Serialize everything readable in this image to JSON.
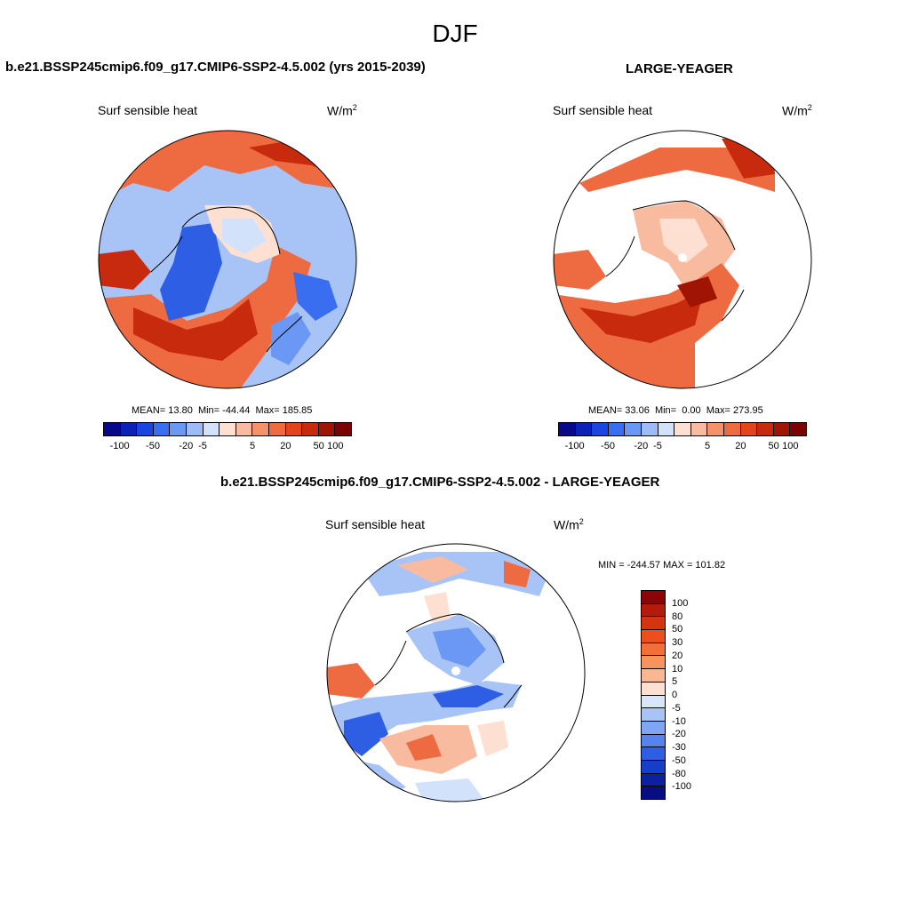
{
  "season": "DJF",
  "panels": {
    "test": {
      "title": "b.e21.BSSP245cmip6.f09_g17.CMIP6-SSP2-4.5.002 (yrs 2015-2039)",
      "variable": "Surf sensible heat",
      "units_base": "W/m",
      "units_exp": "2",
      "mean_label": "MEAN=",
      "mean": "13.80",
      "min_label": "Min=",
      "min": "-44.44",
      "max_label": "Max=",
      "max": "185.85"
    },
    "obs": {
      "title": "LARGE-YEAGER",
      "variable": "Surf sensible heat",
      "units_base": "W/m",
      "units_exp": "2",
      "mean_label": "MEAN=",
      "mean": "33.06",
      "min_label": "Min=",
      "min": "0.00",
      "max_label": "Max=",
      "max": "273.95"
    },
    "diff": {
      "title": "b.e21.BSSP245cmip6.f09_g17.CMIP6-SSP2-4.5.002 - LARGE-YEAGER",
      "variable": "Surf sensible heat",
      "units_base": "W/m",
      "units_exp": "2",
      "minmax": "MIN = -244.57 MAX = 101.82"
    }
  },
  "colorbar_horizontal": {
    "colors": [
      "#08088a",
      "#0a22b8",
      "#1c44e0",
      "#3a6ef0",
      "#6a98f4",
      "#9dbcf7",
      "#d2e2fb",
      "#fde0d2",
      "#f9bba0",
      "#f5926c",
      "#ee6a40",
      "#e3441c",
      "#c72a0c",
      "#a01404",
      "#7a0404"
    ],
    "tick_labels": [
      "-100",
      "-50",
      "-20",
      "-5",
      "5",
      "20",
      "50",
      "100"
    ]
  },
  "colorbar_vertical": {
    "colors": [
      "#8a0606",
      "#b21c08",
      "#d4340e",
      "#ec4e1c",
      "#f27038",
      "#f6935e",
      "#f9b892",
      "#fde0d0",
      "#d8e6fb",
      "#a8c4f6",
      "#7ea6f2",
      "#5484ec",
      "#2e5ee4",
      "#163ec8",
      "#0a22a0",
      "#060e80"
    ],
    "tick_labels": [
      "100",
      "80",
      "50",
      "30",
      "20",
      "10",
      "5",
      "0",
      "-5",
      "-10",
      "-20",
      "-30",
      "-50",
      "-80",
      "-100"
    ]
  }
}
